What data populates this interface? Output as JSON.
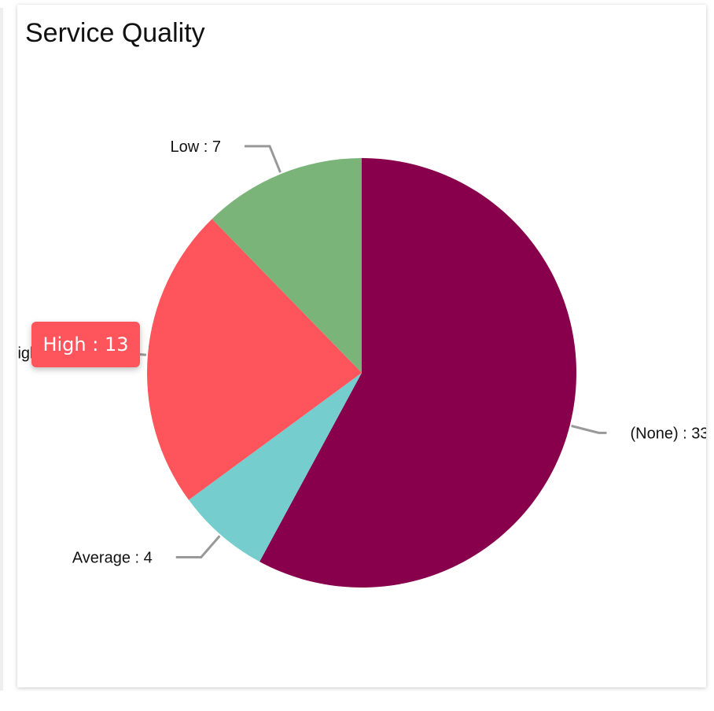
{
  "chart_data": {
    "type": "pie",
    "title": "Service Quality",
    "label_separator": " : ",
    "categories": [
      "(None)",
      "Average",
      "High",
      "Low"
    ],
    "values": [
      33,
      4,
      13,
      7
    ],
    "colors": [
      "#88004c",
      "#76cdcd",
      "#fe555d",
      "#7bb479"
    ],
    "leader_line_color": "#999999",
    "legend": "none"
  },
  "tooltip": {
    "text": "High : 13",
    "category": "High",
    "color": "#fe555d"
  }
}
